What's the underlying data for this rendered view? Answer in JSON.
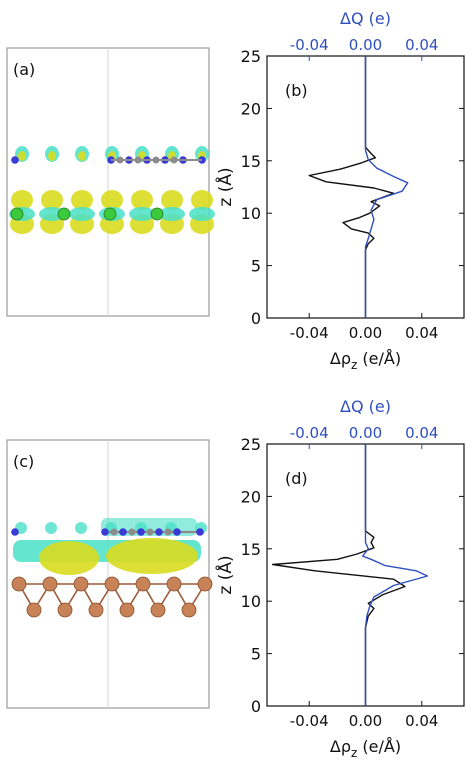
{
  "panels": {
    "a": {
      "label": "(a)",
      "colors": {
        "iso_yellow": "#d9dc1f",
        "iso_cyan": "#49e0c8",
        "atom_blue": "#3a3ad6",
        "atom_green": "#3cc93c",
        "atom_gray": "#8c8c8c"
      }
    },
    "c": {
      "label": "(c)",
      "colors": {
        "iso_yellow": "#d9dc1f",
        "iso_cyan": "#49e0c8",
        "atom_blue": "#3a3ad6",
        "atom_copper": "#c88258",
        "atom_gray": "#8c8c8c"
      }
    }
  },
  "chart_data": [
    {
      "type": "line",
      "panel_label": "(b)",
      "top_axis_title": "ΔQ (e)",
      "bottom_axis_title": "Δρz (e/Å)",
      "ylabel": "z (Å)",
      "ylim": [
        0,
        25
      ],
      "xlim": [
        -0.07,
        0.07
      ],
      "x_ticks": [
        "-0.04",
        "0.00",
        "0.04"
      ],
      "x_tick_values": [
        -0.04,
        0.0,
        0.04
      ],
      "y_ticks": [
        "0",
        "5",
        "10",
        "15",
        "20",
        "25"
      ],
      "colors": {
        "black": "#111111",
        "blue": "#2f4fbf",
        "top_axis": "#2f4fbf"
      },
      "series": [
        {
          "color": "black",
          "points": [
            [
              0,
              0
            ],
            [
              0,
              6.5
            ],
            [
              0.002,
              7.1
            ],
            [
              0.006,
              7.6
            ],
            [
              0.002,
              8.1
            ],
            [
              -0.01,
              8.5
            ],
            [
              -0.016,
              9.1
            ],
            [
              -0.004,
              9.6
            ],
            [
              0.003,
              10.0
            ],
            [
              0.01,
              10.7
            ],
            [
              0.004,
              11.1
            ],
            [
              0.02,
              11.9
            ],
            [
              0.006,
              12.4
            ],
            [
              -0.028,
              13.0
            ],
            [
              -0.04,
              13.6
            ],
            [
              -0.018,
              14.2
            ],
            [
              -0.003,
              14.8
            ],
            [
              0.007,
              15.3
            ],
            [
              0.004,
              15.7
            ],
            [
              0,
              16.3
            ],
            [
              0,
              25
            ]
          ]
        },
        {
          "color": "blue",
          "points": [
            [
              0,
              0
            ],
            [
              0,
              6.8
            ],
            [
              0.002,
              7.6
            ],
            [
              0.004,
              8.5
            ],
            [
              0.006,
              9.4
            ],
            [
              0.004,
              10.3
            ],
            [
              0.008,
              11.3
            ],
            [
              0.026,
              12.1
            ],
            [
              0.03,
              12.9
            ],
            [
              0.02,
              13.5
            ],
            [
              0.008,
              14.3
            ],
            [
              0.002,
              15.1
            ],
            [
              0,
              16.0
            ],
            [
              0,
              25
            ]
          ]
        }
      ]
    },
    {
      "type": "line",
      "panel_label": "(d)",
      "top_axis_title": "ΔQ (e)",
      "bottom_axis_title": "Δρz (e/Å)",
      "ylabel": "z (Å)",
      "ylim": [
        0,
        25
      ],
      "xlim": [
        -0.07,
        0.07
      ],
      "x_ticks": [
        "-0.04",
        "0.00",
        "0.04"
      ],
      "x_tick_values": [
        -0.04,
        0.0,
        0.04
      ],
      "y_ticks": [
        "0",
        "5",
        "10",
        "15",
        "20",
        "25"
      ],
      "colors": {
        "black": "#111111",
        "blue": "#2f4fbf",
        "top_axis": "#2f4fbf"
      },
      "series": [
        {
          "color": "black",
          "points": [
            [
              0,
              0
            ],
            [
              0,
              7.5
            ],
            [
              0.002,
              8.6
            ],
            [
              0.006,
              9.3
            ],
            [
              0.002,
              9.8
            ],
            [
              0.012,
              10.6
            ],
            [
              0.028,
              11.4
            ],
            [
              0.02,
              12.1
            ],
            [
              -0.036,
              12.9
            ],
            [
              -0.066,
              13.5
            ],
            [
              -0.02,
              14.0
            ],
            [
              -0.006,
              14.5
            ],
            [
              0.006,
              15.1
            ],
            [
              0.004,
              15.6
            ],
            [
              0.006,
              16.1
            ],
            [
              0,
              16.7
            ],
            [
              0,
              25
            ]
          ]
        },
        {
          "color": "blue",
          "points": [
            [
              0,
              0
            ],
            [
              0,
              7.5
            ],
            [
              0.001,
              8.6
            ],
            [
              0.003,
              9.5
            ],
            [
              0.006,
              10.4
            ],
            [
              0.02,
              11.5
            ],
            [
              0.044,
              12.4
            ],
            [
              0.036,
              12.9
            ],
            [
              0.014,
              13.4
            ],
            [
              0.004,
              14.0
            ],
            [
              -0.002,
              14.3
            ],
            [
              0.002,
              15.0
            ],
            [
              0,
              15.6
            ],
            [
              0,
              25
            ]
          ]
        }
      ]
    }
  ]
}
